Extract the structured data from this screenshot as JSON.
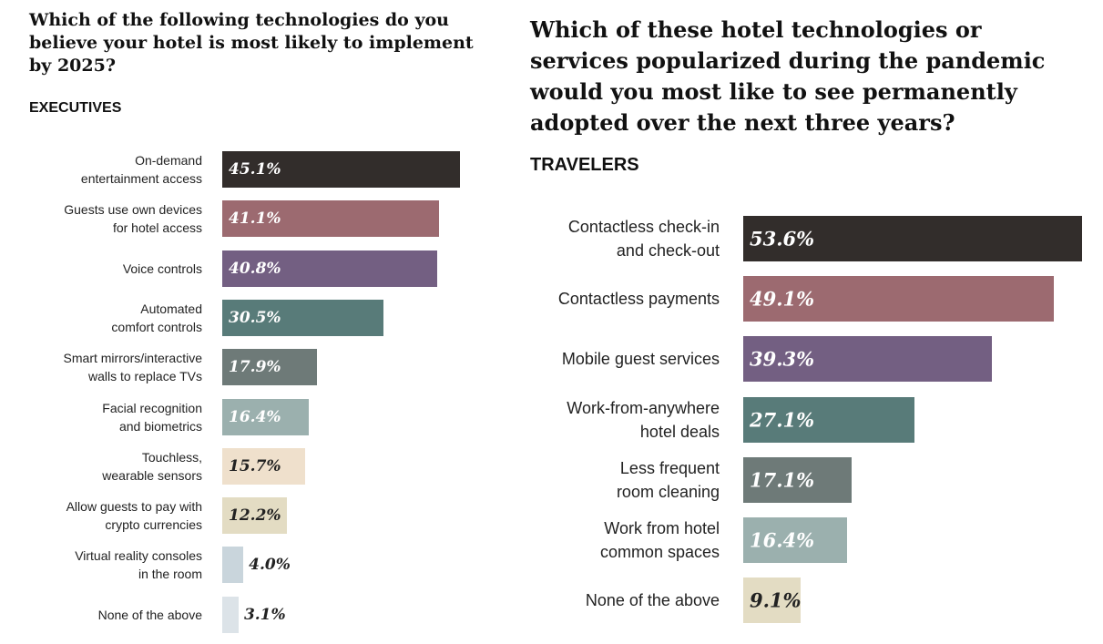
{
  "chart_data": [
    {
      "type": "bar",
      "orientation": "horizontal",
      "title": "Which of the following technologies do you believe your hotel is most likely to implement by 2025?",
      "subtitle": "EXECUTIVES",
      "categories": [
        "On-demand\nentertainment access",
        "Guests use own devices\nfor hotel access",
        "Voice controls",
        "Automated\ncomfort controls",
        "Smart mirrors/interactive\nwalls to replace TVs",
        "Facial recognition\nand biometrics",
        "Touchless,\nwearable sensors",
        "Allow guests to pay with\ncrypto currencies",
        "Virtual reality consoles\nin the room",
        "None of the above"
      ],
      "values": [
        45.1,
        41.1,
        40.8,
        30.5,
        17.9,
        16.4,
        15.7,
        12.2,
        4.0,
        3.1
      ],
      "labels": [
        "45.1%",
        "41.1%",
        "40.8%",
        "30.5%",
        "17.9%",
        "16.4%",
        "15.7%",
        "12.2%",
        "4.0%",
        "3.1%"
      ],
      "colors": [
        "#322d2b",
        "#9c6a70",
        "#735f82",
        "#587b79",
        "#6e7a78",
        "#9bb0ae",
        "#efe0cc",
        "#e3dcc3",
        "#c9d5dc",
        "#dce3e8"
      ]
    },
    {
      "type": "bar",
      "orientation": "horizontal",
      "title": "Which of these hotel technologies or services popularized during the pandemic would you most like to see permanently adopted over the next three years?",
      "subtitle": "TRAVELERS",
      "categories": [
        "Contactless check-in\nand check-out",
        "Contactless payments",
        "Mobile guest services",
        "Work-from-anywhere\nhotel deals",
        "Less frequent\nroom cleaning",
        "Work from hotel\ncommon spaces",
        "None of the above"
      ],
      "values": [
        53.6,
        49.1,
        39.3,
        27.1,
        17.1,
        16.4,
        9.1
      ],
      "labels": [
        "53.6%",
        "49.1%",
        "39.3%",
        "27.1%",
        "17.1%",
        "16.4%",
        "9.1%"
      ],
      "colors": [
        "#322d2b",
        "#9c6a70",
        "#735f82",
        "#587b79",
        "#6e7a78",
        "#9bb0ae",
        "#e3dcc3"
      ]
    }
  ]
}
